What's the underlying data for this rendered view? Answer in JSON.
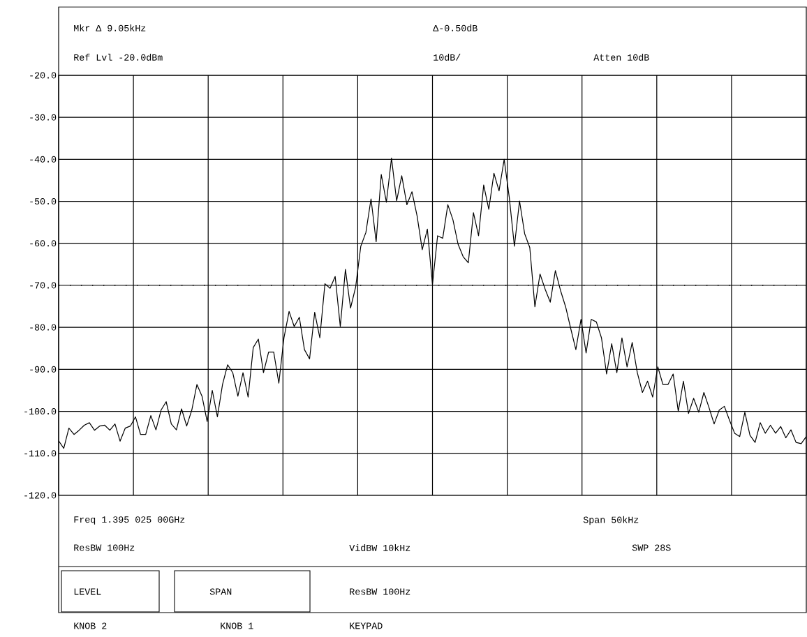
{
  "chart_data": {
    "type": "line",
    "categories": [
      null,
      null,
      null,
      null,
      null,
      null,
      null,
      null,
      null,
      null,
      null,
      null,
      null,
      null,
      null,
      null,
      null,
      null,
      null,
      null,
      null,
      null,
      null,
      null,
      null,
      null,
      null,
      null,
      null,
      null,
      null,
      null,
      null,
      null,
      null,
      null,
      null,
      null,
      null,
      null,
      null,
      null,
      null,
      null,
      null,
      null,
      null,
      null,
      null,
      null,
      null,
      null,
      null,
      null,
      null,
      null,
      null,
      null,
      null,
      null,
      null,
      null,
      null,
      null,
      null,
      null,
      null,
      null,
      null,
      null,
      null,
      null,
      null,
      null,
      null,
      null,
      null,
      null,
      null,
      null,
      null,
      null,
      null,
      null,
      null,
      null,
      null,
      null,
      null,
      null,
      null,
      null,
      null,
      null,
      null,
      null,
      null,
      null,
      null,
      null,
      null,
      null,
      null,
      null,
      null,
      null,
      null,
      null,
      null,
      null,
      null,
      null,
      null,
      null,
      null,
      null,
      null,
      null,
      null,
      null,
      null,
      null,
      null,
      null,
      null,
      null,
      null,
      null,
      null,
      null,
      null,
      null,
      null,
      null,
      null,
      null,
      null,
      null,
      null,
      null,
      null,
      null,
      null,
      null,
      null,
      null,
      null
    ],
    "series": [
      {
        "color": "#000000",
        "values": [
          -107,
          -108.8,
          -104,
          -105.5,
          -104.5,
          -103.3,
          -102.7,
          -104.5,
          -103.5,
          -103.3,
          -104.5,
          -103,
          -107.1,
          -104,
          -103.5,
          -101.3,
          -105.5,
          -105.5,
          -101,
          -104.4,
          -99.7,
          -97.7,
          -103,
          -104.4,
          -99.4,
          -103.5,
          -99.7,
          -93.6,
          -96.4,
          -102.4,
          -95,
          -101.3,
          -93.6,
          -88.9,
          -90.8,
          -96.4,
          -90.8,
          -96.6,
          -84.8,
          -82.8,
          -90.8,
          -85.9,
          -85.9,
          -93.3,
          -82.5,
          -76.2,
          -79.8,
          -77.6,
          -85.3,
          -87.5,
          -76.4,
          -82.5,
          -69.6,
          -70.7,
          -67.9,
          -79.8,
          -66.2,
          -75.4,
          -70.4,
          -60.7,
          -57.4,
          -49.4,
          -59.6,
          -43.6,
          -50.2,
          -39.7,
          -49.9,
          -43.9,
          -50.8,
          -47.7,
          -53.5,
          -61.5,
          -56.6,
          -69.8,
          -58.2,
          -58.8,
          -50.8,
          -54.4,
          -60.2,
          -63.2,
          -64.6,
          -52.7,
          -58.2,
          -46.1,
          -51.9,
          -43.3,
          -47.5,
          -40,
          -49.1,
          -60.7,
          -49.9,
          -57.7,
          -61,
          -75.1,
          -67.3,
          -70.9,
          -74,
          -66.5,
          -71.2,
          -75.1,
          -80.3,
          -85.3,
          -78.1,
          -86.1,
          -78.1,
          -78.7,
          -82.5,
          -91.1,
          -83.9,
          -90.8,
          -82.5,
          -89.4,
          -83.6,
          -90.8,
          -95.5,
          -92.8,
          -96.6,
          -89.4,
          -93.6,
          -93.6,
          -91.1,
          -100,
          -92.8,
          -100.5,
          -96.9,
          -100.2,
          -95.5,
          -99.1,
          -103,
          -99.7,
          -98.8,
          -102.1,
          -105.2,
          -106,
          -100.2,
          -105.7,
          -107.4,
          -102.7,
          -105.2,
          -103.3,
          -105.2,
          -103.6,
          -106.3,
          -104.4,
          -107.4,
          -107.7,
          -106
        ]
      }
    ],
    "ylim": [
      -120,
      -20
    ],
    "yticks": [
      {
        "value": -20,
        "label": "-20.0"
      },
      {
        "value": -30,
        "label": "-30.0"
      },
      {
        "value": -40,
        "label": "-40.0"
      },
      {
        "value": -50,
        "label": "-50.0"
      },
      {
        "value": -60,
        "label": "-60.0"
      },
      {
        "value": -70,
        "label": "-70.0"
      },
      {
        "value": -80,
        "label": "-80.0"
      },
      {
        "value": -90,
        "label": "-90.0"
      },
      {
        "value": -100,
        "label": "-100.0"
      },
      {
        "value": -110,
        "label": "-110.0"
      },
      {
        "value": -120,
        "label": "-120.0"
      }
    ],
    "grid": true,
    "line_style": "solid",
    "ref_lines": [
      {
        "axis": "y",
        "value": -70,
        "line_style": "dotted"
      }
    ],
    "annotations": [
      "Mkr Δ 9.05kHz",
      "Δ-0.50dB",
      "Ref Lvl -20.0dBm",
      "10dB/",
      "Atten 10dB",
      "Freq 1.395 025 00GHz",
      "Span 50kHz",
      "ResBW 100Hz",
      "VidBW 10kHz",
      "SWP 28S",
      "LEVEL",
      "SPAN",
      "ResBW 100Hz",
      "KNOB 2",
      "KNOB 1",
      "KEYPAD"
    ]
  }
}
